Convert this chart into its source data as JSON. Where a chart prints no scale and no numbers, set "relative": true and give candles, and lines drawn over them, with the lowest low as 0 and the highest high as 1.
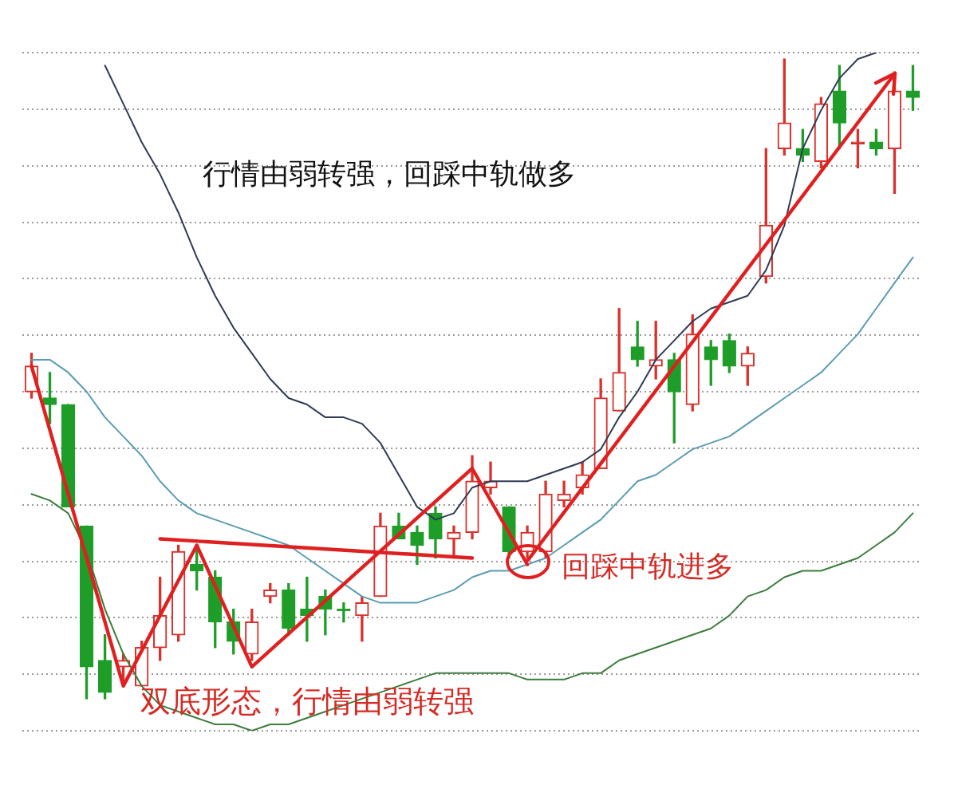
{
  "chart_data": {
    "type": "candlestick",
    "relative": true,
    "grid": "y",
    "tick_labels": false,
    "categories": [
      null,
      null,
      null,
      null,
      null,
      null,
      null,
      null,
      null,
      null,
      null,
      null,
      null,
      null,
      null,
      null,
      null,
      null,
      null,
      null,
      null,
      null,
      null,
      null,
      null,
      null,
      null,
      null,
      null,
      null,
      null,
      null,
      null,
      null,
      null,
      null,
      null,
      null,
      null,
      null,
      null,
      null,
      null,
      null,
      null,
      null,
      null,
      null,
      null
    ],
    "ohlc": [
      [
        0.48,
        0.54,
        0.47,
        0.52
      ],
      [
        0.47,
        0.51,
        0.43,
        0.46
      ],
      [
        0.46,
        0.46,
        0.3,
        0.3
      ],
      [
        0.27,
        0.27,
        0,
        0.05
      ],
      [
        0.06,
        0.1,
        0,
        0.01
      ],
      [
        0.05,
        0.07,
        0.02,
        0.06
      ],
      [
        0.02,
        0.09,
        0.02,
        0.08
      ],
      [
        0.08,
        0.19,
        0.06,
        0.13
      ],
      [
        0.1,
        0.24,
        0.09,
        0.23
      ],
      [
        0.21,
        0.24,
        0.17,
        0.2
      ],
      [
        0.19,
        0.2,
        0.08,
        0.12
      ],
      [
        0.12,
        0.14,
        0.07,
        0.09
      ],
      [
        0.07,
        0.14,
        0.06,
        0.12
      ],
      [
        0.16,
        0.18,
        0.15,
        0.17
      ],
      [
        0.17,
        0.18,
        0.1,
        0.11
      ],
      [
        0.14,
        0.19,
        0.09,
        0.13
      ],
      [
        0.16,
        0.17,
        0.1,
        0.14
      ],
      [
        0.14,
        0.15,
        0.12,
        0.14
      ],
      [
        0.13,
        0.16,
        0.09,
        0.15
      ],
      [
        0.16,
        0.29,
        0.16,
        0.27
      ],
      [
        0.27,
        0.29,
        0.25,
        0.25
      ],
      [
        0.26,
        0.27,
        0.21,
        0.24
      ],
      [
        0.29,
        0.3,
        0.22,
        0.25
      ],
      [
        0.25,
        0.27,
        0.22,
        0.26
      ],
      [
        0.26,
        0.38,
        0.25,
        0.34
      ],
      [
        0.33,
        0.37,
        0.32,
        0.34
      ],
      [
        0.3,
        0.3,
        0.22,
        0.23
      ],
      [
        0.23,
        0.27,
        0.22,
        0.26
      ],
      [
        0.23,
        0.34,
        0.22,
        0.32
      ],
      [
        0.31,
        0.34,
        0.3,
        0.32
      ],
      [
        0.33,
        0.37,
        0.32,
        0.35
      ],
      [
        0.36,
        0.5,
        0.36,
        0.47
      ],
      [
        0.45,
        0.61,
        0.45,
        0.51
      ],
      [
        0.55,
        0.59,
        0.52,
        0.53
      ],
      [
        0.52,
        0.59,
        0.5,
        0.53
      ],
      [
        0.53,
        0.54,
        0.4,
        0.48
      ],
      [
        0.46,
        0.6,
        0.45,
        0.57
      ],
      [
        0.55,
        0.56,
        0.49,
        0.53
      ],
      [
        0.56,
        0.57,
        0.51,
        0.52
      ],
      [
        0.52,
        0.55,
        0.49,
        0.54
      ],
      [
        0.66,
        0.86,
        0.65,
        0.74
      ],
      [
        0.86,
        1,
        0.85,
        0.9
      ],
      [
        0.86,
        0.89,
        0.84,
        0.85
      ],
      [
        0.84,
        0.94,
        0.83,
        0.93
      ],
      [
        0.95,
        0.99,
        0.86,
        0.9
      ],
      [
        0.87,
        0.89,
        0.83,
        0.87
      ],
      [
        0.87,
        0.89,
        0.85,
        0.86
      ],
      [
        0.86,
        0.98,
        0.79,
        0.95
      ],
      [
        0.95,
        0.99,
        0.92,
        0.94
      ]
    ],
    "colors": [
      "#d9312b",
      "#1e9e28",
      "#1e9e28",
      "#1e9e28",
      "#1e9e28",
      "#d9312b",
      "#d9312b",
      "#d9312b",
      "#d9312b",
      "#1e9e28",
      "#1e9e28",
      "#1e9e28",
      "#d9312b",
      "#d9312b",
      "#1e9e28",
      "#1e9e28",
      "#1e9e28",
      "#1e9e28",
      "#d9312b",
      "#d9312b",
      "#1e9e28",
      "#1e9e28",
      "#1e9e28",
      "#d9312b",
      "#d9312b",
      "#d9312b",
      "#1e9e28",
      "#d9312b",
      "#d9312b",
      "#d9312b",
      "#d9312b",
      "#d9312b",
      "#d9312b",
      "#1e9e28",
      "#d9312b",
      "#1e9e28",
      "#d9312b",
      "#1e9e28",
      "#1e9e28",
      "#d9312b",
      "#d9312b",
      "#d9312b",
      "#1e9e28",
      "#d9312b",
      "#1e9e28",
      "#d9312b",
      "#1e9e28",
      "#d9312b",
      "#1e9e28"
    ],
    "series": [
      {
        "type": "line",
        "color": "#2e3b55",
        "values": [
          null,
          null,
          null,
          null,
          0.99,
          0.93,
          0.87,
          0.82,
          0.76,
          0.69,
          0.63,
          0.58,
          0.54,
          0.5,
          0.47,
          0.46,
          0.44,
          0.44,
          0.43,
          0.4,
          0.35,
          0.3,
          0.28,
          0.29,
          0.33,
          0.34,
          0.34,
          0.34,
          0.35,
          0.36,
          0.37,
          0.39,
          0.44,
          0.48,
          0.53,
          0.56,
          0.59,
          0.61,
          0.62,
          0.63,
          0.67,
          0.74,
          0.86,
          0.92,
          0.97,
          1.0,
          1.01,
          null,
          null
        ]
      },
      {
        "type": "line",
        "color": "#5b9cb3",
        "values": [
          0.53,
          0.53,
          0.51,
          0.48,
          0.44,
          0.41,
          0.38,
          0.34,
          0.31,
          0.29,
          0.28,
          0.27,
          0.26,
          0.25,
          0.24,
          0.22,
          0.2,
          0.18,
          0.16,
          0.15,
          0.15,
          0.15,
          0.16,
          0.17,
          0.19,
          0.2,
          0.2,
          0.21,
          0.22,
          0.24,
          0.26,
          0.28,
          0.31,
          0.34,
          0.35,
          0.37,
          0.39,
          0.4,
          0.41,
          0.43,
          0.45,
          0.47,
          0.49,
          0.51,
          0.54,
          0.57,
          0.61,
          0.65,
          0.69
        ]
      },
      {
        "type": "line",
        "color": "#e02020",
        "values": [
          0.52,
          null,
          null,
          null,
          null,
          0.02,
          null,
          null,
          null,
          0.24,
          null,
          null,
          0.05,
          null,
          null,
          null,
          null,
          null,
          null,
          null,
          null,
          null,
          null,
          null,
          0.36,
          null,
          null,
          0.21,
          null,
          null,
          null,
          null,
          null,
          null,
          null,
          null,
          null,
          null,
          null,
          null,
          null,
          null,
          null,
          null,
          null,
          null,
          null,
          null,
          null
        ]
      },
      {
        "type": "line",
        "color": "#e02020",
        "values": [
          null,
          null,
          null,
          null,
          null,
          null,
          null,
          0.25,
          null,
          null,
          null,
          null,
          null,
          null,
          null,
          null,
          null,
          null,
          null,
          null,
          null,
          null,
          null,
          null,
          0.22,
          null,
          null,
          null,
          null,
          null,
          null,
          null,
          null,
          null,
          null,
          null,
          null,
          null,
          null,
          null,
          null,
          null,
          null,
          null,
          null,
          null,
          null,
          null,
          null
        ]
      },
      {
        "type": "line",
        "color": "#3c7d3c",
        "values": [
          0.32,
          0.31,
          0.29,
          0.23,
          0.14,
          0.07,
          0.02,
          -0.01,
          -0.02,
          -0.03,
          -0.04,
          -0.04,
          -0.05,
          -0.04,
          -0.04,
          -0.03,
          -0.02,
          -0.01,
          0.0,
          0.01,
          0.02,
          0.03,
          0.04,
          0.04,
          0.04,
          0.04,
          0.04,
          0.03,
          0.03,
          0.03,
          0.04,
          0.04,
          0.06,
          0.07,
          0.08,
          0.09,
          0.1,
          0.11,
          0.13,
          0.16,
          0.17,
          0.19,
          0.2,
          0.2,
          0.21,
          0.22,
          0.24,
          0.26,
          0.29
        ]
      }
    ],
    "annotations": [
      "行情由弱转强，回踩中轨做多",
      "双底形态，行情由弱转强",
      "回踩中轨进多"
    ]
  }
}
